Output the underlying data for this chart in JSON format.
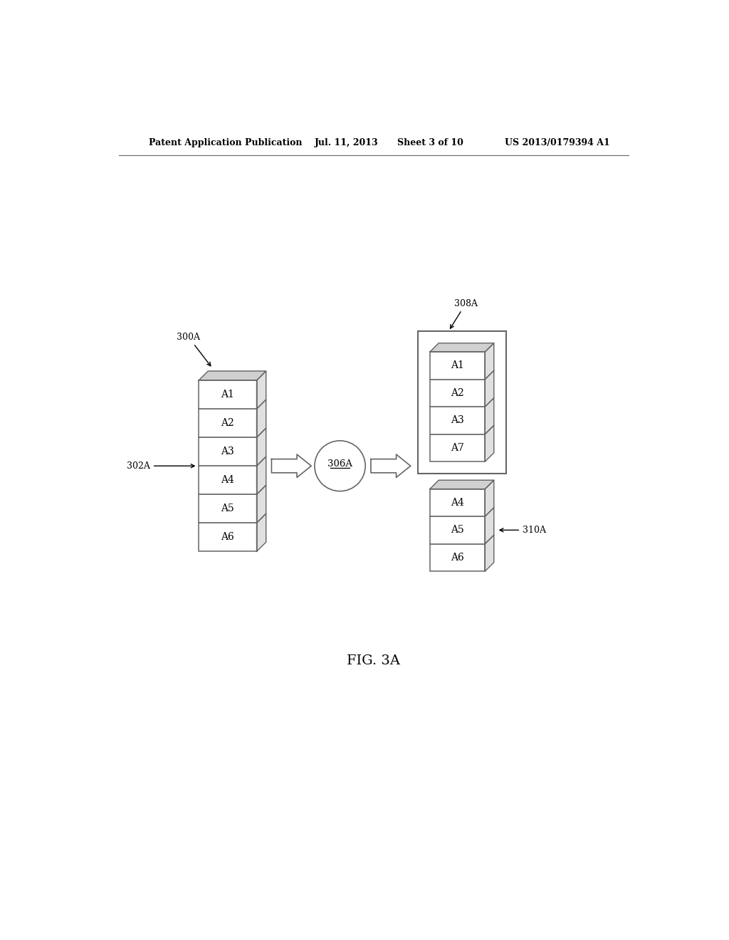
{
  "bg_color": "#ffffff",
  "header_text": "Patent Application Publication",
  "header_date": "Jul. 11, 2013",
  "header_sheet": "Sheet 3 of 10",
  "header_patent": "US 2013/0179394 A1",
  "fig_label": "FIG. 3A",
  "label_300A": "300A",
  "label_302A": "302A",
  "label_306A": "306A",
  "label_308A": "308A",
  "label_310A": "310A",
  "stack_left_items": [
    "A1",
    "A2",
    "A3",
    "A4",
    "A5",
    "A6"
  ],
  "stack_308_items": [
    "A1",
    "A2",
    "A3",
    "A7"
  ],
  "stack_310_items": [
    "A4",
    "A5",
    "A6"
  ],
  "line_color": "#666666",
  "text_color": "#000000",
  "box_fill": "#ffffff",
  "side_fill": "#e0e0e0",
  "top_fill": "#d0d0d0"
}
